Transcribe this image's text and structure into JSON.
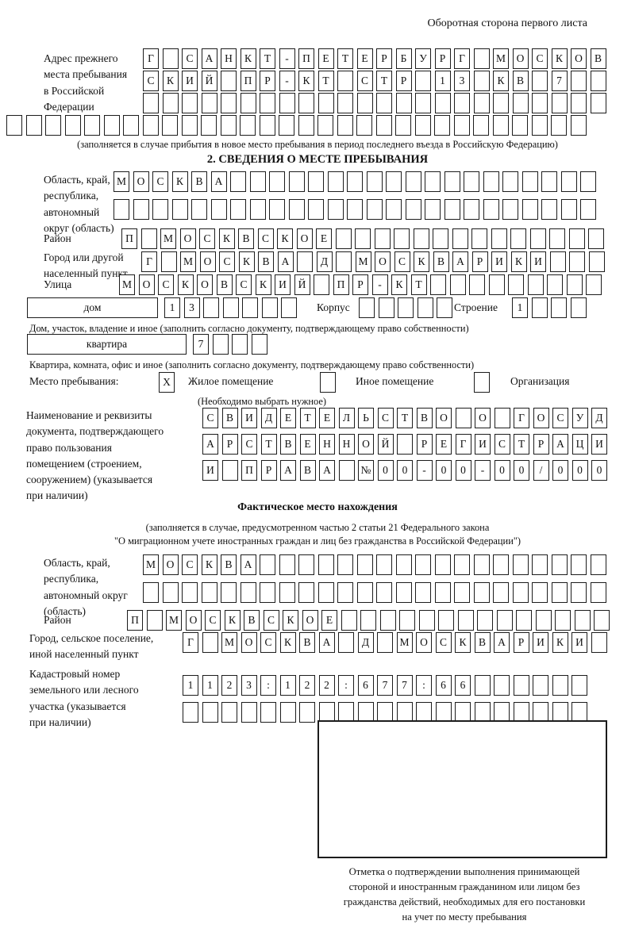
{
  "page_note": "Оборотная сторона первого листа",
  "prev_address": {
    "label": "Адрес прежнего\nместа пребывания\nв Российской\nФедерации",
    "rows": [
      {
        "text": "Г САНКТ-ПЕТЕРБУРГ МОСКОВ",
        "len": 24
      },
      {
        "text": "СКИЙ ПР-КТ СТР 13 КВ 7",
        "len": 24
      },
      {
        "text": "",
        "len": 24
      }
    ],
    "full_row": {
      "text": "",
      "len": 30
    },
    "note": "(заполняется в случае прибытия в новое место пребывания в период последнего въезда в Российскую Федерацию)"
  },
  "section2": {
    "title": "2. СВЕДЕНИЯ О МЕСТЕ ПРЕБЫВАНИЯ",
    "region": {
      "label": "Область, край,\nреспублика,\nавтономный\nокруг (область)",
      "rows": [
        {
          "text": "МОСКВА",
          "len": 25
        },
        {
          "text": "",
          "len": 25
        }
      ]
    },
    "district": {
      "label": "Район",
      "row": {
        "text": "П МОСКВСКОЕ",
        "len": 25
      }
    },
    "city": {
      "label": "Город или другой\nнаселенный пункт",
      "row": {
        "text": "Г МОСКВА Д МОСКВАРИКИ",
        "len": 24
      }
    },
    "street": {
      "label": "Улица",
      "row": {
        "text": "МОСКОВСКИЙ ПР-КТ",
        "len": 25
      }
    },
    "house": {
      "type_label": "дом",
      "number": {
        "text": "13",
        "len": 7
      },
      "korpus_label": "Корпус",
      "korpus": {
        "text": "",
        "len": 5
      },
      "stroenie_label": "Строение",
      "stroenie": {
        "text": "1",
        "len": 4
      },
      "note": "Дом, участок, владение и иное (заполнить согласно документу, подтверждающему право собственности)"
    },
    "apartment": {
      "type_label": "квартира",
      "number": {
        "text": "7",
        "len": 4
      },
      "note": "Квартира, комната, офис и иное (заполнить согласно документу, подтверждающему право собственности)"
    },
    "stay_type": {
      "label": "Место пребывания:",
      "options": [
        {
          "label": "Жилое помещение",
          "checked": "X"
        },
        {
          "label": "Иное помещение",
          "checked": ""
        },
        {
          "label": "Организация",
          "checked": ""
        }
      ],
      "note": "(Необходимо выбрать нужное)"
    },
    "document": {
      "label": "Наименование и реквизиты\nдокумента, подтверждающего\nправо пользования\nпомещением (строением,\nсооружением) (указывается\nпри наличии)",
      "rows": [
        {
          "text": "СВИДЕТЕЛЬСТВО О ГОСУД",
          "len": 21
        },
        {
          "text": "АРСТВЕННОЙ РЕГИСТРАЦИ",
          "len": 21
        },
        {
          "text": "И ПРАВА №00-00-00/000",
          "len": 21
        }
      ]
    }
  },
  "actual_location": {
    "title": "Фактическое место нахождения",
    "note1": "(заполняется в случае, предусмотренном частью 2 статьи 21 Федерального закона",
    "note2": "\"О миграционном учете иностранных граждан и лиц без гражданства в Российской Федерации\")",
    "region": {
      "label": "Область, край,\nреспублика,\nавтономный округ\n(область)",
      "rows": [
        {
          "text": "МОСКВА",
          "len": 24
        },
        {
          "text": "",
          "len": 24
        }
      ]
    },
    "district": {
      "label": "Район",
      "row": {
        "text": "П МОСКВСКОЕ",
        "len": 25
      }
    },
    "city": {
      "label": "Город, сельское поселение,\nиной населенный пункт",
      "row": {
        "text": "Г МОСКВА Д МОСКВАРИКИ",
        "len": 22
      }
    },
    "cadastre": {
      "label": "Кадастровый номер\nземельного или лесного\nучастка (указывается\nпри наличии)",
      "rows": [
        {
          "text": "1123:122:677:66",
          "len": 21
        },
        {
          "text": "",
          "len": 21
        }
      ]
    },
    "stamp_note": "Отметка о подтверждении выполнения принимающей\nстороной и иностранным гражданином или лицом без\nгражданства действий, необходимых для его постановки\nна учет по месту пребывания"
  }
}
